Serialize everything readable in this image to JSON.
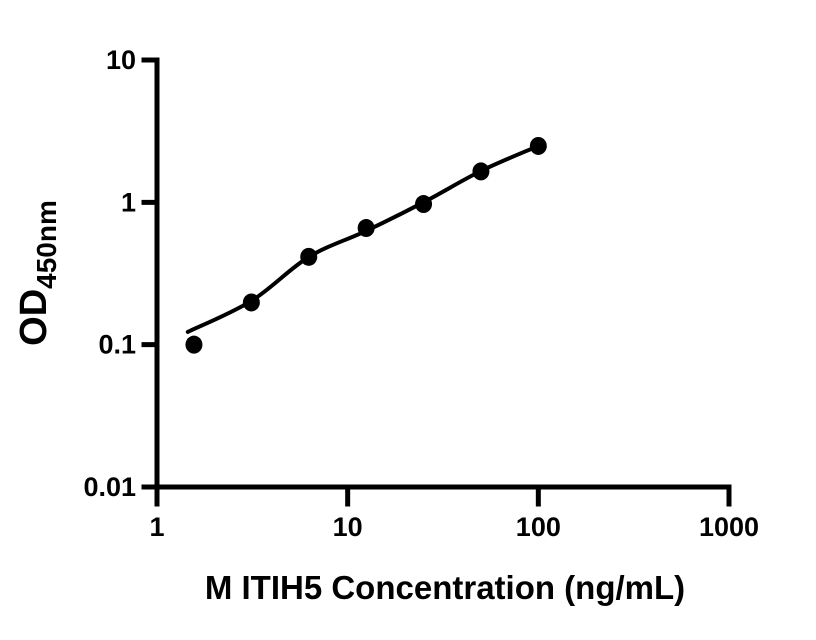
{
  "figure": {
    "background_color": "#ffffff",
    "ink_color": "#000000"
  },
  "chart_data": {
    "type": "scatter",
    "title": "",
    "xlabel": "M ITIH5 Concentration (ng/mL)",
    "ylabel": "OD450nm",
    "ylabel_main": "OD",
    "ylabel_sub": "450nm",
    "x_scale": "log",
    "y_scale": "log",
    "xlim": [
      1,
      1000
    ],
    "ylim": [
      0.01,
      10
    ],
    "grid": false,
    "legend": "none",
    "x_ticks": [
      {
        "value": 1,
        "label": "1"
      },
      {
        "value": 10,
        "label": "10"
      },
      {
        "value": 100,
        "label": "100"
      },
      {
        "value": 1000,
        "label": "1000"
      }
    ],
    "y_ticks": [
      {
        "value": 0.01,
        "label": "0.01"
      },
      {
        "value": 0.1,
        "label": "0.1"
      },
      {
        "value": 1,
        "label": "1"
      },
      {
        "value": 10,
        "label": "10"
      }
    ],
    "series": [
      {
        "name": "standards",
        "role": "data-points",
        "marker": "filled-circle",
        "color": "#000000",
        "x": [
          1.5625,
          3.125,
          6.25,
          12.5,
          25,
          50,
          100
        ],
        "y": [
          0.1,
          0.198,
          0.414,
          0.66,
          0.973,
          1.65,
          2.49
        ]
      },
      {
        "name": "fit-curve",
        "role": "fitted-line",
        "color": "#000000",
        "x": [
          1.45,
          3.125,
          6.25,
          12.5,
          25,
          50,
          100
        ],
        "y": [
          0.123,
          0.203,
          0.413,
          0.63,
          1.0,
          1.66,
          2.49
        ]
      }
    ]
  }
}
